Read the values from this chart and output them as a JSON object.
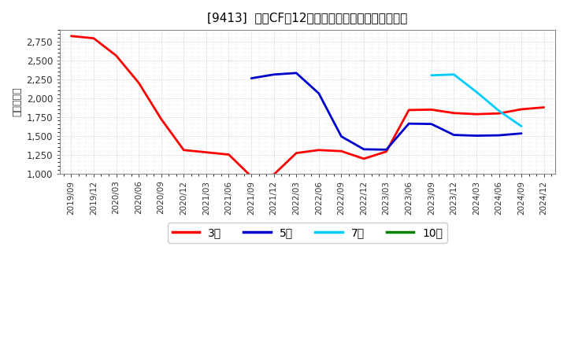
{
  "title": "[9413]  投資CFの12か月移動合計の標準偏差の推移",
  "ylabel": "（百万円）",
  "ylim": [
    1000,
    2900
  ],
  "yticks": [
    1000,
    1250,
    1500,
    1750,
    2000,
    2250,
    2500,
    2750
  ],
  "fig_bg_color": "#ffffff",
  "plot_bg_color": "#ffffff",
  "grid_color": "#aaaaaa",
  "series": {
    "3year": {
      "color": "#ff0000",
      "label": "3年",
      "x": [
        "2019/09",
        "2019/12",
        "2020/03",
        "2020/06",
        "2020/09",
        "2020/12",
        "2021/03",
        "2021/06",
        "2021/09",
        "2021/12",
        "2022/03",
        "2022/06",
        "2022/09",
        "2022/12",
        "2023/03",
        "2023/06",
        "2023/09",
        "2023/12",
        "2024/03",
        "2024/06",
        "2024/09",
        "2024/12"
      ],
      "y": [
        2820,
        2790,
        2560,
        2200,
        1720,
        1310,
        1280,
        1250,
        960,
        985,
        1270,
        1310,
        1295,
        1195,
        1290,
        1840,
        1845,
        1800,
        1785,
        1795,
        1850,
        1875
      ]
    },
    "5year": {
      "color": "#0000cc",
      "label": "5年",
      "x": [
        "2021/09",
        "2021/12",
        "2022/03",
        "2022/06",
        "2022/09",
        "2022/12",
        "2023/03",
        "2023/06",
        "2023/09",
        "2023/12",
        "2024/03",
        "2024/06",
        "2024/09"
      ],
      "y": [
        2260,
        2310,
        2330,
        2060,
        1490,
        1320,
        1315,
        1660,
        1655,
        1510,
        1500,
        1505,
        1530
      ]
    },
    "7year": {
      "color": "#00ccff",
      "label": "7年",
      "x": [
        "2023/09",
        "2023/12",
        "2024/03",
        "2024/06",
        "2024/09"
      ],
      "y": [
        2300,
        2310,
        2080,
        1830,
        1625
      ]
    },
    "10year": {
      "color": "#008000",
      "label": "10年",
      "x": [],
      "y": []
    }
  },
  "legend_labels": [
    "3年",
    "5年",
    "7年",
    "10年"
  ],
  "legend_colors": [
    "#ff0000",
    "#0000cc",
    "#00ccff",
    "#008000"
  ],
  "xtick_labels": [
    "2019/09",
    "2019/12",
    "2020/03",
    "2020/06",
    "2020/09",
    "2020/12",
    "2021/03",
    "2021/06",
    "2021/09",
    "2021/12",
    "2022/03",
    "2022/06",
    "2022/09",
    "2022/12",
    "2023/03",
    "2023/06",
    "2023/09",
    "2023/12",
    "2024/03",
    "2024/06",
    "2024/09",
    "2024/12"
  ]
}
